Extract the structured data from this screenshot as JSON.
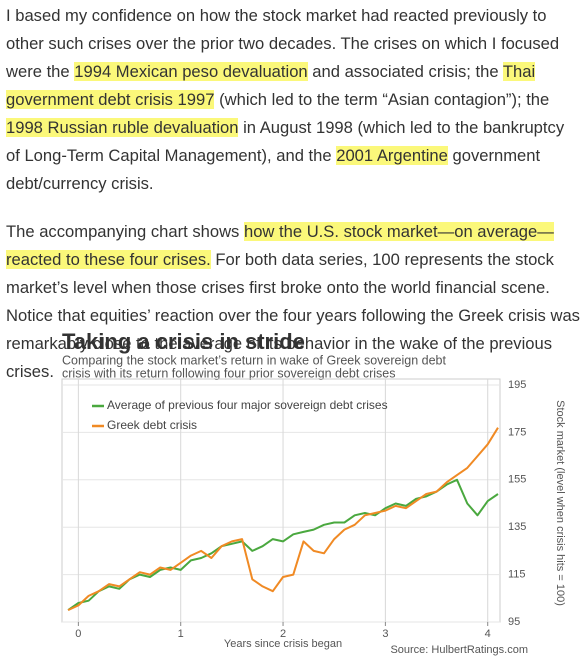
{
  "paragraphs": [
    {
      "segments": [
        {
          "text": "I based my confidence on how the stock market had reacted previously to other such crises over the prior two decades. The crises on which I focused were the ",
          "highlight": false
        },
        {
          "text": "1994 Mexican peso devaluation",
          "highlight": true
        },
        {
          "text": " and associated crisis; the ",
          "highlight": false
        },
        {
          "text": "Thai government debt crisis 1997",
          "highlight": true
        },
        {
          "text": " (which led to the term “Asian contagion”); the ",
          "highlight": false
        },
        {
          "text": "1998 Russian ruble devaluation",
          "highlight": true
        },
        {
          "text": " in August 1998 (which led to the bankruptcy of Long-Term Capital Management), and the ",
          "highlight": false
        },
        {
          "text": "2001 Argentine",
          "highlight": true
        },
        {
          "text": " government debt/currency crisis.",
          "highlight": false
        }
      ]
    },
    {
      "segments": [
        {
          "text": "The accompanying chart shows ",
          "highlight": false
        },
        {
          "text": "how the U.S. stock market—on average—reacted to these four crises.",
          "highlight": true
        },
        {
          "text": " For both data series, 100 represents the stock market’s level when those crises first broke onto the world financial scene. Notice that equities’ reaction over the four years following the Greek crisis was remarkably close to the average of its behavior in the wake of the previous crises.",
          "highlight": false
        }
      ]
    }
  ],
  "chart_data": {
    "type": "line",
    "title": "Taking a crisis in stride",
    "subtitle": [
      "Comparing the stock market’s return in wake of Greek sovereign debt",
      "crisis with its return following four prior sovereign debt crises"
    ],
    "x_label": "Years since crisis began",
    "y_label": "Stock market (level when crisis hits = 100)",
    "source": "Source: HulbertRatings.com",
    "x": [
      -0.1,
      0,
      0.1,
      0.2,
      0.3,
      0.4,
      0.5,
      0.6,
      0.7,
      0.8,
      0.9,
      1,
      1.1,
      1.2,
      1.3,
      1.4,
      1.5,
      1.6,
      1.7,
      1.8,
      1.9,
      2,
      2.1,
      2.2,
      2.3,
      2.4,
      2.5,
      2.6,
      2.7,
      2.8,
      2.9,
      3,
      3.1,
      3.2,
      3.3,
      3.4,
      3.5,
      3.6,
      3.7,
      3.8,
      3.9,
      4,
      4.1
    ],
    "series": [
      {
        "name": "Average of previous four major sovereign debt crises",
        "color": "#4aa83f",
        "values": [
          100,
          103,
          104,
          108,
          110,
          109,
          113,
          115,
          114,
          117,
          118,
          117,
          121,
          122,
          124,
          127,
          128,
          129,
          125,
          127,
          130,
          129,
          132,
          133,
          134,
          136,
          137,
          137,
          140,
          141,
          140,
          143,
          145,
          144,
          147,
          148,
          150,
          153,
          155,
          145,
          140,
          146,
          149
        ]
      },
      {
        "name": "Greek debt crisis",
        "color": "#f08a24",
        "values": [
          100,
          102,
          106,
          108,
          111,
          110,
          113,
          116,
          115,
          118,
          117,
          120,
          123,
          125,
          122,
          127,
          129,
          130,
          113,
          110,
          108,
          114,
          115,
          129,
          125,
          124,
          130,
          134,
          136,
          140,
          141,
          142,
          144,
          143,
          146,
          149,
          150,
          154,
          157,
          160,
          165,
          170,
          177
        ]
      }
    ],
    "xlim": [
      -0.16,
      4.12
    ],
    "xticks": [
      0,
      1,
      2,
      3,
      4
    ],
    "ylim": [
      95,
      195
    ],
    "yticks": [
      95,
      115,
      135,
      155,
      175,
      195
    ],
    "grid": true,
    "legend": "upper left"
  }
}
